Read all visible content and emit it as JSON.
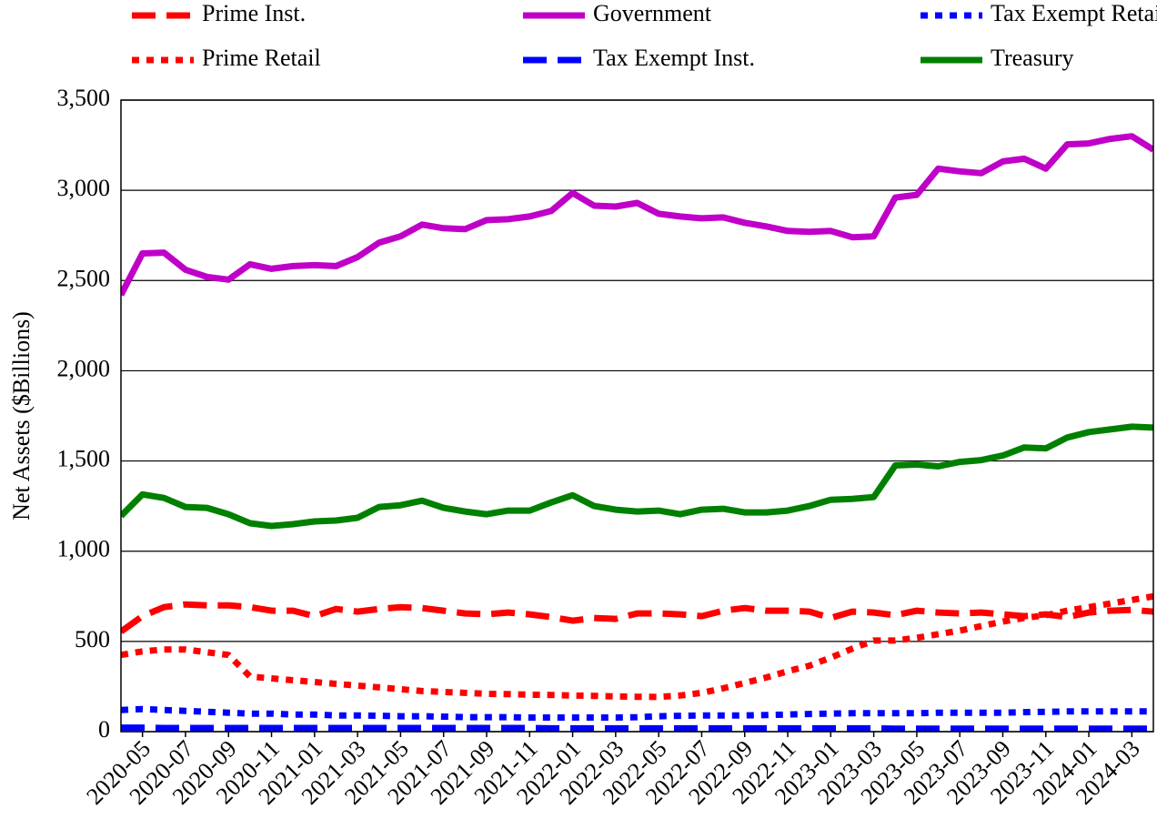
{
  "chart_data": {
    "type": "line",
    "y_label": "Net Assets ($Billions)",
    "legend": "top",
    "grid": true,
    "categories": [
      null,
      "2020-05",
      null,
      "2020-07",
      null,
      "2020-09",
      null,
      "2020-11",
      null,
      "2021-01",
      null,
      "2021-03",
      null,
      "2021-05",
      null,
      "2021-07",
      null,
      "2021-09",
      null,
      "2021-11",
      null,
      "2022-01",
      null,
      "2022-03",
      null,
      "2022-05",
      null,
      "2022-07",
      null,
      "2022-09",
      null,
      "2022-11",
      null,
      "2023-01",
      null,
      "2023-03",
      null,
      "2023-05",
      null,
      "2023-07",
      null,
      "2023-09",
      null,
      "2023-11",
      null,
      "2024-01",
      null,
      "2024-03",
      null
    ],
    "ylim": [
      0,
      3500
    ],
    "yticks": [
      0,
      500,
      {
        "value": 1000,
        "label": "1,000"
      },
      {
        "value": 1500,
        "label": "1,500"
      },
      {
        "value": 2000,
        "label": "2,000"
      },
      {
        "value": 2500,
        "label": "2,500"
      },
      {
        "value": 3000,
        "label": "3,000"
      },
      {
        "value": 3500,
        "label": "3,500"
      }
    ],
    "series": [
      {
        "name": "Prime Inst.",
        "color": "#ff0000",
        "dash": "dashed",
        "values": [
          555,
          640,
          690,
          705,
          700,
          700,
          690,
          670,
          670,
          640,
          680,
          665,
          680,
          690,
          685,
          670,
          655,
          650,
          660,
          650,
          635,
          615,
          630,
          625,
          655,
          655,
          650,
          640,
          670,
          685,
          670,
          670,
          665,
          630,
          665,
          660,
          645,
          670,
          660,
          655,
          660,
          650,
          640,
          650,
          635,
          660,
          670,
          675,
          665
        ]
      },
      {
        "name": "Prime Retail",
        "color": "#ff0000",
        "dash": "dotted",
        "values": [
          425,
          445,
          455,
          455,
          440,
          425,
          305,
          295,
          285,
          275,
          265,
          255,
          245,
          235,
          225,
          220,
          215,
          210,
          208,
          205,
          203,
          200,
          198,
          195,
          193,
          192,
          200,
          215,
          240,
          270,
          300,
          335,
          365,
          410,
          460,
          505,
          505,
          520,
          540,
          560,
          585,
          610,
          630,
          645,
          670,
          690,
          710,
          730,
          750
        ]
      },
      {
        "name": "Government",
        "color": "#c000c8",
        "dash": "solid",
        "values": [
          2420,
          2650,
          2655,
          2560,
          2520,
          2505,
          2590,
          2565,
          2580,
          2585,
          2580,
          2630,
          2710,
          2745,
          2810,
          2790,
          2785,
          2835,
          2840,
          2855,
          2885,
          2985,
          2915,
          2910,
          2930,
          2870,
          2855,
          2845,
          2850,
          2820,
          2800,
          2775,
          2770,
          2775,
          2740,
          2745,
          2960,
          2975,
          3120,
          3105,
          3095,
          3160,
          3175,
          3120,
          3255,
          3260,
          3285,
          3300,
          3225
        ]
      },
      {
        "name": "Tax Exempt Inst.",
        "color": "#0000ff",
        "dash": "dashed",
        "values": [
          22,
          22,
          20,
          20,
          20,
          20,
          20,
          20,
          20,
          20,
          20,
          20,
          20,
          20,
          20,
          20,
          20,
          20,
          20,
          20,
          18,
          18,
          18,
          18,
          18,
          18,
          18,
          18,
          18,
          18,
          18,
          18,
          18,
          18,
          18,
          18,
          16,
          16,
          16,
          16,
          16,
          16,
          16,
          16,
          16,
          16,
          16,
          16,
          16
        ]
      },
      {
        "name": "Tax Exempt Retail",
        "color": "#0000ff",
        "dash": "dotted",
        "values": [
          120,
          125,
          120,
          115,
          110,
          105,
          100,
          100,
          95,
          95,
          90,
          90,
          88,
          85,
          85,
          83,
          80,
          80,
          80,
          78,
          78,
          78,
          78,
          78,
          80,
          85,
          88,
          90,
          90,
          90,
          92,
          95,
          98,
          100,
          102,
          102,
          102,
          102,
          105,
          105,
          105,
          105,
          108,
          110,
          112,
          112,
          112,
          112,
          112
        ]
      },
      {
        "name": "Treasury",
        "color": "#008000",
        "dash": "solid",
        "values": [
          1195,
          1315,
          1295,
          1245,
          1240,
          1205,
          1155,
          1140,
          1150,
          1165,
          1170,
          1185,
          1245,
          1255,
          1280,
          1240,
          1220,
          1205,
          1225,
          1225,
          1270,
          1310,
          1250,
          1230,
          1220,
          1225,
          1205,
          1230,
          1235,
          1215,
          1215,
          1225,
          1250,
          1285,
          1290,
          1300,
          1475,
          1480,
          1470,
          1495,
          1505,
          1530,
          1575,
          1570,
          1630,
          1660,
          1675,
          1690,
          1685
        ]
      }
    ]
  }
}
